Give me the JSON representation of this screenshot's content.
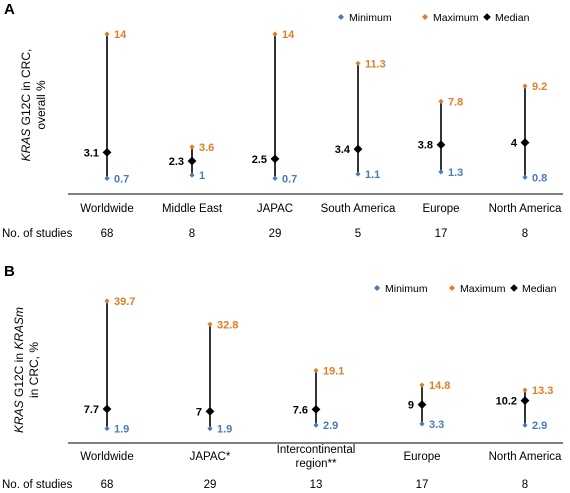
{
  "colors": {
    "minimum": "#4a7ab8",
    "maximum": "#e07e27",
    "median": "#000000"
  },
  "chart_data": [
    {
      "type": "range",
      "panel": "A",
      "ylabel_parts": [
        "KRAS",
        " G12C in CRC,",
        "overall %"
      ],
      "legend": [
        "Minimum",
        "Maximum",
        "Median"
      ],
      "categories": [
        "Worldwide",
        "Middle East",
        "JAPAC",
        "South America",
        "Europe",
        "North America"
      ],
      "minimum": [
        0.7,
        1,
        0.7,
        1.1,
        1.3,
        0.8
      ],
      "maximum": [
        14,
        3.6,
        14,
        11.3,
        7.8,
        9.2
      ],
      "median": [
        3.1,
        2.3,
        2.5,
        3.4,
        3.8,
        4
      ],
      "studies_label": "No. of studies",
      "studies": [
        "68",
        "8",
        "29",
        "5",
        "17",
        "8"
      ],
      "ylim": [
        0,
        14
      ]
    },
    {
      "type": "range",
      "panel": "B",
      "ylabel_parts": [
        "KRAS",
        " G12C in ",
        "KRASm",
        "in CRC, %"
      ],
      "legend": [
        "Minimum",
        "Maximum",
        "Median"
      ],
      "categories": [
        "Worldwide",
        "JAPAC*",
        "Intercontinental region**",
        "Europe",
        "North America"
      ],
      "category_lines": [
        [
          "Worldwide"
        ],
        [
          "JAPAC*"
        ],
        [
          "Intercontinental",
          "region**"
        ],
        [
          "Europe"
        ],
        [
          "North America"
        ]
      ],
      "minimum": [
        1.9,
        1.9,
        2.9,
        3.3,
        2.9
      ],
      "maximum": [
        39.7,
        32.8,
        19.1,
        14.8,
        13.3
      ],
      "median": [
        7.7,
        7,
        7.6,
        9,
        10.2
      ],
      "studies_label": "No. of studies",
      "studies": [
        "68",
        "29",
        "13",
        "17",
        "8"
      ],
      "ylim": [
        0,
        39.7
      ]
    }
  ]
}
